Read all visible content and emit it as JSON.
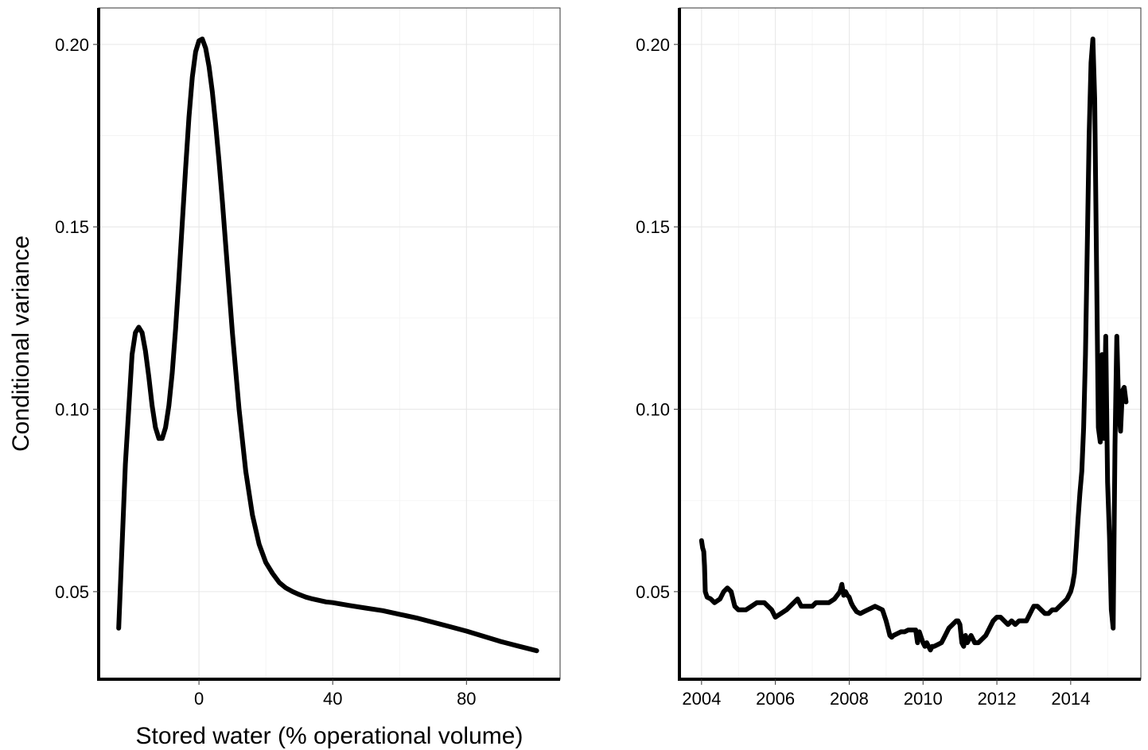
{
  "chart_data": [
    {
      "type": "line",
      "title": "",
      "xlabel": "Stored water (% operational volume)",
      "ylabel": "Conditional variance",
      "xlim": [
        -30,
        108
      ],
      "ylim": [
        0.026,
        0.21
      ],
      "x_ticks": [
        0,
        40,
        80
      ],
      "x_tick_labels": [
        "0",
        "40",
        "80"
      ],
      "y_ticks": [
        0.05,
        0.1,
        0.15,
        0.2
      ],
      "y_tick_labels": [
        "0.05",
        "0.10",
        "0.15",
        "0.20"
      ],
      "grid": true,
      "legend": "none",
      "series": [
        {
          "color": "#000000",
          "x": [
            -24,
            -22,
            -20,
            -19,
            -18,
            -17,
            -16,
            -15,
            -14,
            -13,
            -12,
            -11,
            -10,
            -9,
            -8,
            -7,
            -6,
            -5,
            -4,
            -3,
            -2,
            -1,
            0,
            1,
            2,
            3,
            4,
            5,
            6,
            7,
            8,
            9,
            10,
            12,
            14,
            16,
            18,
            20,
            22,
            24,
            26,
            28,
            30,
            32,
            34,
            36,
            38,
            40,
            45,
            50,
            55,
            60,
            65,
            70,
            75,
            80,
            85,
            90,
            95,
            101
          ],
          "y": [
            0.04,
            0.085,
            0.115,
            0.121,
            0.1225,
            0.121,
            0.116,
            0.109,
            0.101,
            0.095,
            0.092,
            0.092,
            0.095,
            0.101,
            0.11,
            0.122,
            0.136,
            0.151,
            0.166,
            0.18,
            0.191,
            0.198,
            0.201,
            0.2015,
            0.199,
            0.194,
            0.187,
            0.178,
            0.168,
            0.157,
            0.145,
            0.133,
            0.121,
            0.1,
            0.083,
            0.071,
            0.063,
            0.058,
            0.055,
            0.0525,
            0.051,
            0.05,
            0.0492,
            0.0485,
            0.048,
            0.0476,
            0.0472,
            0.047,
            0.0462,
            0.0455,
            0.0448,
            0.0438,
            0.0428,
            0.0416,
            0.0404,
            0.0392,
            0.0378,
            0.0364,
            0.0352,
            0.0338
          ]
        }
      ]
    },
    {
      "type": "line",
      "title": "",
      "xlabel": "",
      "ylabel": "",
      "xlim": [
        2003.4,
        2015.9
      ],
      "ylim": [
        0.026,
        0.21
      ],
      "x_ticks": [
        2004,
        2006,
        2008,
        2010,
        2012,
        2014
      ],
      "x_tick_labels": [
        "2004",
        "2006",
        "2008",
        "2010",
        "2012",
        "2014"
      ],
      "y_ticks": [
        0.05,
        0.1,
        0.15,
        0.2
      ],
      "y_tick_labels": [
        "0.05",
        "0.10",
        "0.15",
        "0.20"
      ],
      "grid": true,
      "legend": "none",
      "series": [
        {
          "color": "#000000",
          "x": [
            2004.0,
            2004.03,
            2004.06,
            2004.08,
            2004.1,
            2004.15,
            2004.25,
            2004.35,
            2004.5,
            2004.6,
            2004.7,
            2004.8,
            2004.9,
            2005.0,
            2005.1,
            2005.2,
            2005.35,
            2005.5,
            2005.7,
            2005.9,
            2006.0,
            2006.15,
            2006.3,
            2006.4,
            2006.5,
            2006.6,
            2006.7,
            2006.8,
            2006.9,
            2007.0,
            2007.1,
            2007.2,
            2007.3,
            2007.45,
            2007.6,
            2007.75,
            2007.8,
            2007.85,
            2007.9,
            2007.95,
            2008.0,
            2008.05,
            2008.1,
            2008.2,
            2008.3,
            2008.4,
            2008.5,
            2008.6,
            2008.7,
            2008.8,
            2008.9,
            2009.0,
            2009.05,
            2009.1,
            2009.15,
            2009.2,
            2009.3,
            2009.4,
            2009.5,
            2009.6,
            2009.7,
            2009.8,
            2009.85,
            2009.9,
            2010.0,
            2010.05,
            2010.1,
            2010.15,
            2010.2,
            2010.25,
            2010.3,
            2010.4,
            2010.5,
            2010.6,
            2010.7,
            2010.8,
            2010.9,
            2010.95,
            2011.0,
            2011.05,
            2011.1,
            2011.15,
            2011.2,
            2011.3,
            2011.4,
            2011.5,
            2011.6,
            2011.7,
            2011.8,
            2011.9,
            2012.0,
            2012.1,
            2012.2,
            2012.3,
            2012.4,
            2012.5,
            2012.6,
            2012.7,
            2012.8,
            2012.9,
            2013.0,
            2013.1,
            2013.2,
            2013.3,
            2013.4,
            2013.5,
            2013.6,
            2013.7,
            2013.8,
            2013.9,
            2014.0,
            2014.05,
            2014.1,
            2014.15,
            2014.2,
            2014.25,
            2014.3,
            2014.35,
            2014.4,
            2014.45,
            2014.5,
            2014.55,
            2014.6,
            2014.65,
            2014.7,
            2014.75,
            2014.8,
            2014.85,
            2014.9,
            2014.95,
            2015.0,
            2015.05,
            2015.1,
            2015.15,
            2015.2,
            2015.25,
            2015.3,
            2015.35,
            2015.4,
            2015.45,
            2015.5
          ],
          "y": [
            0.064,
            0.062,
            0.061,
            0.057,
            0.05,
            0.0485,
            0.048,
            0.047,
            0.048,
            0.05,
            0.051,
            0.05,
            0.046,
            0.045,
            0.045,
            0.045,
            0.046,
            0.047,
            0.047,
            0.045,
            0.043,
            0.044,
            0.045,
            0.046,
            0.047,
            0.048,
            0.046,
            0.046,
            0.046,
            0.046,
            0.047,
            0.047,
            0.047,
            0.047,
            0.048,
            0.05,
            0.052,
            0.049,
            0.05,
            0.049,
            0.0485,
            0.047,
            0.046,
            0.0445,
            0.044,
            0.0445,
            0.045,
            0.0455,
            0.046,
            0.0455,
            0.045,
            0.042,
            0.04,
            0.038,
            0.0375,
            0.038,
            0.0385,
            0.039,
            0.039,
            0.0395,
            0.0395,
            0.0395,
            0.036,
            0.039,
            0.036,
            0.035,
            0.036,
            0.035,
            0.034,
            0.035,
            0.035,
            0.0355,
            0.036,
            0.038,
            0.04,
            0.041,
            0.042,
            0.042,
            0.041,
            0.036,
            0.035,
            0.038,
            0.036,
            0.038,
            0.036,
            0.036,
            0.037,
            0.038,
            0.04,
            0.042,
            0.043,
            0.043,
            0.042,
            0.041,
            0.042,
            0.041,
            0.042,
            0.042,
            0.042,
            0.044,
            0.046,
            0.046,
            0.045,
            0.044,
            0.044,
            0.045,
            0.045,
            0.046,
            0.047,
            0.048,
            0.05,
            0.052,
            0.055,
            0.062,
            0.07,
            0.077,
            0.083,
            0.095,
            0.115,
            0.145,
            0.175,
            0.195,
            0.2015,
            0.185,
            0.14,
            0.095,
            0.091,
            0.115,
            0.092,
            0.12,
            0.08,
            0.065,
            0.045,
            0.04,
            0.09,
            0.12,
            0.1,
            0.094,
            0.105,
            0.106,
            0.102
          ]
        }
      ]
    }
  ]
}
